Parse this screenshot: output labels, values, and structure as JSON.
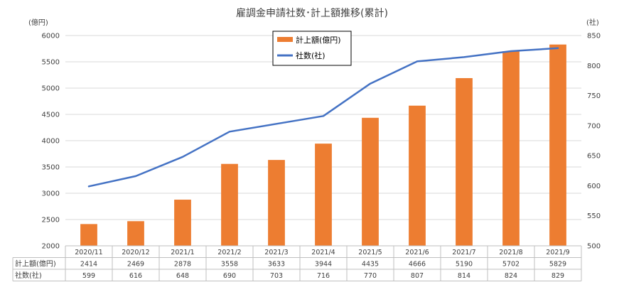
{
  "chart_data": {
    "type": "bar",
    "title": "雇調金申請社数･計上額推移(累計)",
    "left_axis_unit": "(億円)",
    "right_axis_unit": "(社)",
    "categories": [
      "2020/11",
      "2020/12",
      "2021/1",
      "2021/2",
      "2021/3",
      "2021/4",
      "2021/5",
      "2021/6",
      "2021/7",
      "2021/8",
      "2021/9"
    ],
    "series": [
      {
        "name": "計上額(億円)",
        "type": "bar",
        "axis": "left",
        "color": "#ED7D31",
        "values": [
          2414,
          2469,
          2878,
          3558,
          3633,
          3944,
          4435,
          4666,
          5190,
          5702,
          5829
        ]
      },
      {
        "name": "社数(社)",
        "type": "line",
        "axis": "right",
        "color": "#4472C4",
        "values": [
          599,
          616,
          648,
          690,
          703,
          716,
          770,
          807,
          814,
          824,
          829
        ]
      }
    ],
    "ylim_left": [
      2000,
      6000
    ],
    "yticks_left": [
      2000,
      2500,
      3000,
      3500,
      4000,
      4500,
      5000,
      5500,
      6000
    ],
    "ylim_right": [
      500,
      850
    ],
    "yticks_right": [
      500,
      550,
      600,
      650,
      700,
      750,
      800,
      850
    ],
    "grid": true,
    "legend_position": "top-center",
    "data_table": {
      "row_labels": [
        "計上額(億円)",
        "社数(社)"
      ]
    }
  }
}
